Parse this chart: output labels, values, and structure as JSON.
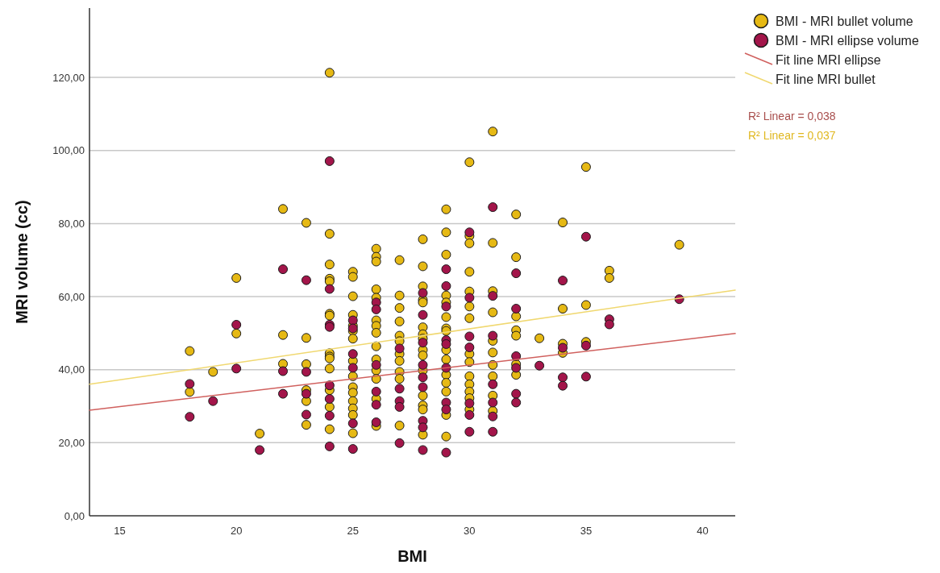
{
  "chart_data": {
    "type": "scatter",
    "xlabel": "BMI",
    "ylabel": "MRI volume (cc)",
    "xlim": [
      13.7,
      41.4
    ],
    "xticks": [
      15,
      20,
      25,
      30,
      35,
      40
    ],
    "ylim": [
      0,
      139
    ],
    "yticks": [
      {
        "value": 0,
        "label": "0,00"
      },
      {
        "value": 20,
        "label": "20,00"
      },
      {
        "value": 40,
        "label": "40,00"
      },
      {
        "value": 60,
        "label": "60,00"
      },
      {
        "value": 80,
        "label": "80,00"
      },
      {
        "value": 100,
        "label": "100,00"
      },
      {
        "value": 120,
        "label": "120,00"
      }
    ],
    "grid": "y",
    "legend": "top right",
    "marker": "circle",
    "annotations": [
      "R² Linear = 0,038",
      "R² Linear = 0,037"
    ],
    "series": [
      {
        "name": "BMI - MRI bullet volume",
        "color": "#e6b914",
        "x": [
          18,
          18,
          19,
          20,
          20,
          21,
          22,
          22,
          22,
          23,
          23,
          23,
          23,
          23,
          23,
          24,
          24,
          24,
          24,
          24,
          24,
          24,
          24,
          24,
          24,
          24,
          24,
          24,
          24,
          25,
          25,
          25,
          25,
          25,
          25,
          25,
          25,
          25,
          25,
          25,
          25,
          25,
          25,
          25,
          26,
          26,
          26,
          26,
          26,
          26,
          26,
          26,
          26,
          26,
          26,
          26,
          26,
          26,
          27,
          27,
          27,
          27,
          27,
          27,
          27,
          27,
          27,
          27,
          27,
          28,
          28,
          28,
          28,
          28,
          28,
          28,
          28,
          28,
          28,
          28,
          28,
          28,
          28,
          28,
          29,
          29,
          29,
          29,
          29,
          29,
          29,
          29,
          29,
          29,
          29,
          29,
          29,
          29,
          29,
          30,
          30,
          30,
          30,
          30,
          30,
          30,
          30,
          30,
          30,
          30,
          30,
          30,
          30,
          31,
          31,
          31,
          31,
          31,
          31,
          31,
          31,
          31,
          31,
          32,
          32,
          32,
          32,
          32,
          32,
          32,
          33,
          34,
          34,
          34,
          34,
          35,
          35,
          35,
          36,
          36,
          39
        ],
        "values": [
          45.1,
          33.9,
          39.4,
          65.1,
          49.9,
          22.5,
          84.0,
          49.5,
          41.6,
          80.2,
          48.7,
          41.5,
          34.4,
          31.4,
          24.9,
          121.3,
          77.2,
          68.8,
          64.9,
          64.2,
          55.3,
          54.8,
          44.5,
          43.6,
          43.1,
          40.3,
          34.4,
          29.8,
          23.7,
          66.8,
          65.4,
          60.1,
          55.0,
          52.0,
          50.6,
          48.5,
          42.4,
          38.2,
          35.2,
          33.7,
          31.4,
          29.4,
          27.6,
          22.6,
          73.1,
          70.9,
          69.6,
          62.0,
          59.7,
          53.5,
          52.0,
          50.1,
          46.4,
          42.8,
          39.8,
          37.5,
          32.0,
          24.6,
          70.0,
          60.3,
          56.9,
          53.2,
          49.3,
          47.8,
          44.3,
          42.4,
          39.4,
          37.5,
          24.7,
          75.7,
          68.3,
          62.8,
          59.1,
          58.4,
          51.6,
          49.7,
          48.5,
          45.4,
          43.9,
          39.8,
          32.9,
          30.2,
          29.1,
          22.2,
          83.9,
          77.6,
          71.5,
          60.3,
          58.4,
          54.4,
          51.3,
          50.6,
          45.4,
          42.8,
          38.6,
          36.4,
          34.0,
          27.6,
          21.7,
          96.8,
          76.6,
          74.6,
          66.8,
          61.4,
          57.3,
          54.1,
          44.3,
          42.1,
          38.2,
          36.0,
          34.0,
          32.2,
          29.1,
          105.2,
          74.7,
          61.5,
          55.7,
          47.9,
          44.7,
          41.3,
          38.2,
          32.9,
          28.7,
          82.5,
          70.8,
          54.6,
          50.8,
          49.3,
          41.5,
          38.6,
          48.6,
          80.3,
          56.7,
          47.1,
          44.6,
          95.5,
          57.7,
          47.6,
          67.1,
          65.1,
          74.2
        ]
      },
      {
        "name": "BMI - MRI ellipse volume",
        "color": "#a3154a",
        "x": [
          18,
          18,
          19,
          20,
          20,
          21,
          22,
          22,
          22,
          23,
          23,
          23,
          23,
          24,
          24,
          24,
          24,
          24,
          24,
          24,
          24,
          25,
          25,
          25,
          25,
          25,
          25,
          26,
          26,
          26,
          26,
          26,
          26,
          27,
          27,
          27,
          27,
          27,
          28,
          28,
          28,
          28,
          28,
          28,
          28,
          28,
          28,
          29,
          29,
          29,
          29,
          29,
          29,
          29,
          29,
          29,
          30,
          30,
          30,
          30,
          30,
          30,
          30,
          31,
          31,
          31,
          31,
          31,
          31,
          31,
          32,
          32,
          32,
          32,
          32,
          32,
          33,
          34,
          34,
          34,
          34,
          35,
          35,
          35,
          36,
          36,
          39
        ],
        "values": [
          36.1,
          27.1,
          31.4,
          52.3,
          40.3,
          18.0,
          67.5,
          39.6,
          33.4,
          64.5,
          39.4,
          33.4,
          27.7,
          97.1,
          62.1,
          52.3,
          51.7,
          35.7,
          32.0,
          27.4,
          19.0,
          53.5,
          51.3,
          44.3,
          40.5,
          25.3,
          18.3,
          58.4,
          56.5,
          41.3,
          34.0,
          30.4,
          25.6,
          45.8,
          34.8,
          31.4,
          29.8,
          19.9,
          61.0,
          55.0,
          47.4,
          41.3,
          37.9,
          35.2,
          26.0,
          24.2,
          18.0,
          67.5,
          62.9,
          57.3,
          48.1,
          47.0,
          40.5,
          31.0,
          29.1,
          17.3,
          77.6,
          59.7,
          49.1,
          46.1,
          30.8,
          27.6,
          23.0,
          84.5,
          60.2,
          49.3,
          36.0,
          31.0,
          27.2,
          23.0,
          66.4,
          56.7,
          43.7,
          40.5,
          33.4,
          31.0,
          41.1,
          64.4,
          46.0,
          37.9,
          35.6,
          76.4,
          46.6,
          38.1,
          53.8,
          52.4,
          59.3
        ]
      },
      {
        "name": "Fit line MRI ellipse",
        "color": "#d0605e",
        "type": "line",
        "marker": "none",
        "x": [
          13.7,
          41.4
        ],
        "values": [
          28.9,
          49.9
        ]
      },
      {
        "name": "Fit line MRI bullet",
        "color": "#f0d870",
        "type": "line",
        "marker": "none",
        "x": [
          13.7,
          41.4
        ],
        "values": [
          36.0,
          61.8
        ]
      }
    ]
  }
}
